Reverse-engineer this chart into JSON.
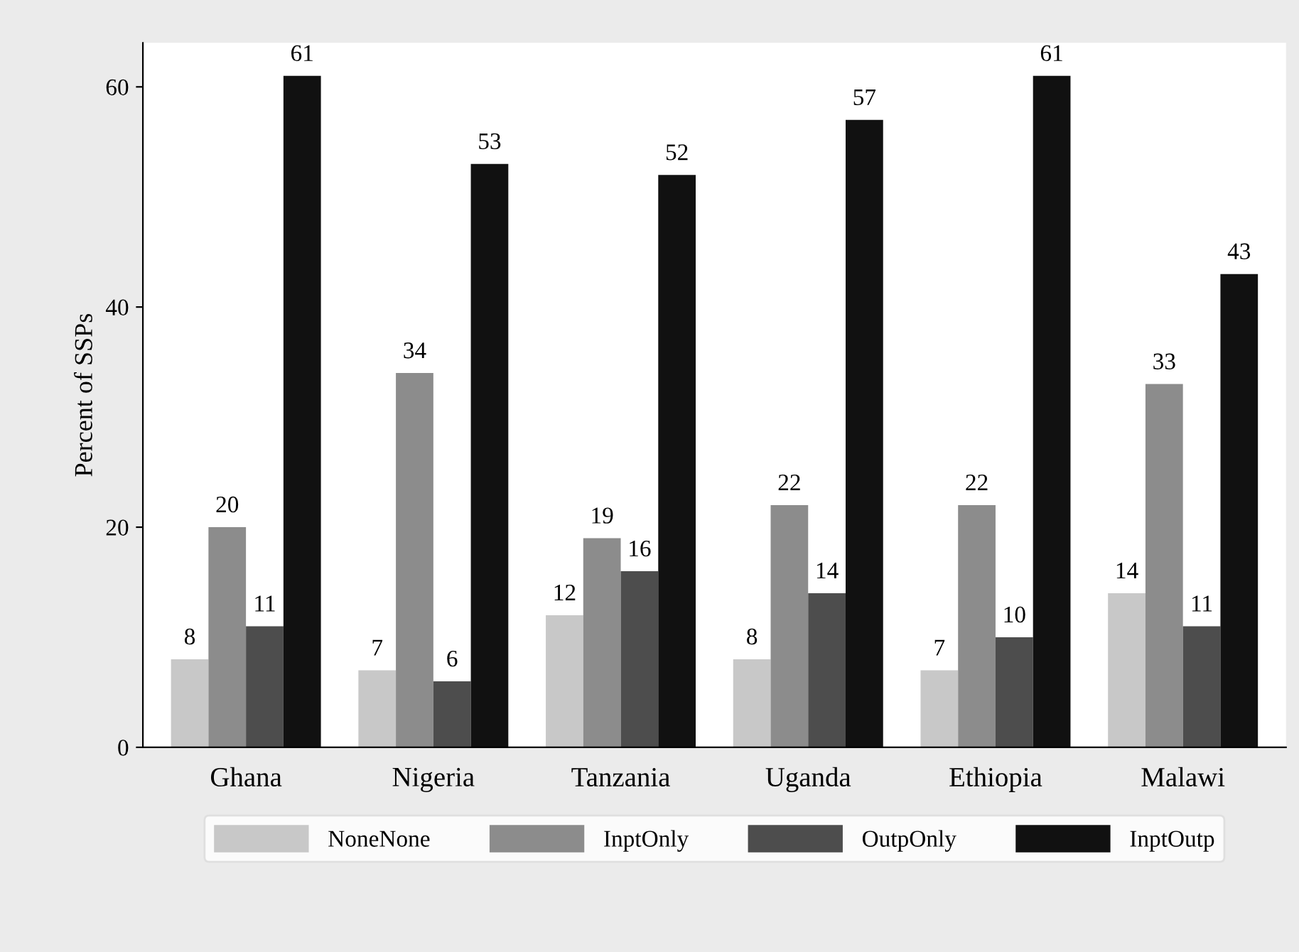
{
  "chart_data": {
    "type": "bar",
    "ylabel": "Percent of SSPs",
    "categories": [
      "Ghana",
      "Nigeria",
      "Tanzania",
      "Uganda",
      "Ethiopia",
      "Malawi"
    ],
    "series": [
      {
        "name": "NoneNone",
        "color": "#c8c8c8",
        "values": [
          8,
          7,
          12,
          8,
          7,
          14
        ]
      },
      {
        "name": "InptOnly",
        "color": "#8c8c8c",
        "values": [
          20,
          34,
          19,
          22,
          22,
          33
        ]
      },
      {
        "name": "OutpOnly",
        "color": "#4d4d4d",
        "values": [
          11,
          6,
          16,
          14,
          10,
          11
        ]
      },
      {
        "name": "InptOutp",
        "color": "#111111",
        "values": [
          61,
          53,
          52,
          57,
          61,
          43
        ]
      }
    ],
    "ylim": [
      0,
      64
    ],
    "yticks": [
      0,
      20,
      40,
      60
    ],
    "data_labels": true,
    "grid": false,
    "legend": "bottom"
  }
}
